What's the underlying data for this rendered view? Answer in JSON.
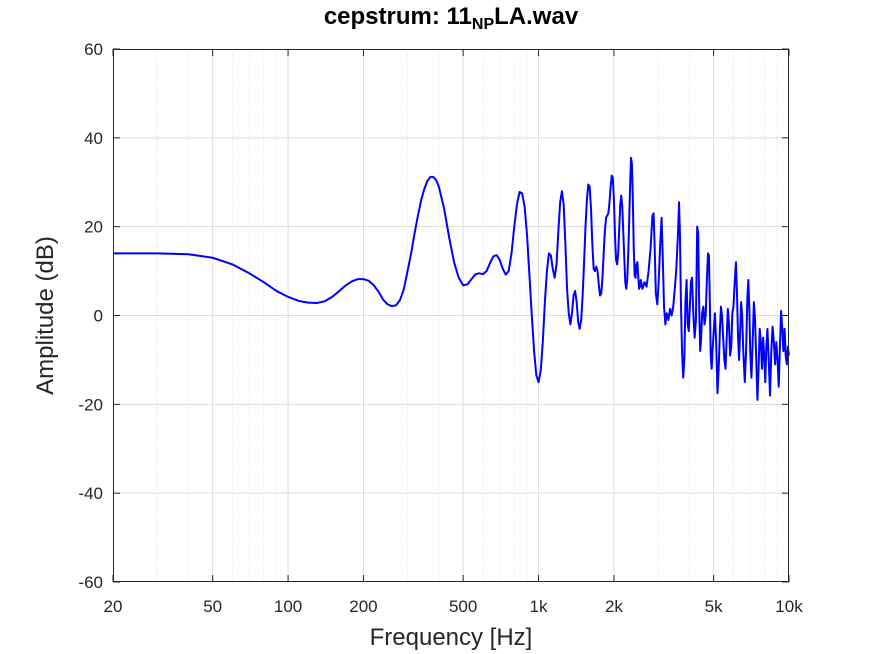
{
  "chart_data": {
    "type": "line",
    "title": {
      "prefix": "cepstrum: 11",
      "subscript": "NP",
      "suffix": "LA.wav"
    },
    "xlabel": "Frequency  [Hz]",
    "ylabel": "Amplitude (dB)",
    "xscale": "log",
    "xlim": [
      20,
      10000
    ],
    "ylim": [
      -60,
      60
    ],
    "grid": true,
    "x_ticks": [
      {
        "value": 20,
        "label": "20"
      },
      {
        "value": 50,
        "label": "50"
      },
      {
        "value": 100,
        "label": "100"
      },
      {
        "value": 200,
        "label": "200"
      },
      {
        "value": 500,
        "label": "500"
      },
      {
        "value": 1000,
        "label": "1k"
      },
      {
        "value": 2000,
        "label": "2k"
      },
      {
        "value": 5000,
        "label": "5k"
      },
      {
        "value": 10000,
        "label": "10k"
      }
    ],
    "y_ticks": [
      {
        "value": -60,
        "label": "-60"
      },
      {
        "value": -40,
        "label": "-40"
      },
      {
        "value": -20,
        "label": "-20"
      },
      {
        "value": 0,
        "label": "0"
      },
      {
        "value": 20,
        "label": "20"
      },
      {
        "value": 40,
        "label": "40"
      },
      {
        "value": 60,
        "label": "60"
      }
    ],
    "series": [
      {
        "color": "#0000ff",
        "points": [
          [
            20,
            14.0
          ],
          [
            30,
            14.0
          ],
          [
            40,
            13.8
          ],
          [
            50,
            13.0
          ],
          [
            60,
            11.5
          ],
          [
            70,
            9.5
          ],
          [
            80,
            7.5
          ],
          [
            90,
            5.5
          ],
          [
            100,
            4.2
          ],
          [
            110,
            3.3
          ],
          [
            120,
            2.9
          ],
          [
            130,
            2.8
          ],
          [
            140,
            3.2
          ],
          [
            150,
            4.2
          ],
          [
            160,
            5.5
          ],
          [
            170,
            6.8
          ],
          [
            180,
            7.7
          ],
          [
            190,
            8.2
          ],
          [
            200,
            8.2
          ],
          [
            210,
            7.8
          ],
          [
            220,
            6.8
          ],
          [
            230,
            5.3
          ],
          [
            240,
            3.5
          ],
          [
            250,
            2.5
          ],
          [
            260,
            2.1
          ],
          [
            270,
            2.3
          ],
          [
            280,
            3.5
          ],
          [
            290,
            6.0
          ],
          [
            300,
            10.0
          ],
          [
            310,
            14.0
          ],
          [
            320,
            18.5
          ],
          [
            330,
            22.5
          ],
          [
            340,
            26.0
          ],
          [
            350,
            28.5
          ],
          [
            360,
            30.3
          ],
          [
            370,
            31.2
          ],
          [
            380,
            31.2
          ],
          [
            390,
            30.5
          ],
          [
            400,
            29.0
          ],
          [
            420,
            24.0
          ],
          [
            440,
            17.5
          ],
          [
            460,
            12.0
          ],
          [
            480,
            8.5
          ],
          [
            500,
            6.8
          ],
          [
            520,
            7.0
          ],
          [
            540,
            8.2
          ],
          [
            560,
            9.3
          ],
          [
            580,
            9.5
          ],
          [
            600,
            9.3
          ],
          [
            620,
            10.0
          ],
          [
            640,
            11.8
          ],
          [
            660,
            13.3
          ],
          [
            680,
            13.6
          ],
          [
            700,
            12.5
          ],
          [
            720,
            10.5
          ],
          [
            740,
            9.2
          ],
          [
            760,
            10.0
          ],
          [
            780,
            14.0
          ],
          [
            800,
            20.0
          ],
          [
            820,
            25.0
          ],
          [
            840,
            27.8
          ],
          [
            860,
            27.5
          ],
          [
            880,
            24.5
          ],
          [
            900,
            18.0
          ],
          [
            920,
            9.0
          ],
          [
            940,
            0.0
          ],
          [
            960,
            -8.0
          ],
          [
            980,
            -13.5
          ],
          [
            1000,
            -15.0
          ],
          [
            1020,
            -12.5
          ],
          [
            1040,
            -6.0
          ],
          [
            1060,
            3.0
          ],
          [
            1080,
            10.0
          ],
          [
            1100,
            14.0
          ],
          [
            1120,
            13.5
          ],
          [
            1140,
            10.5
          ],
          [
            1160,
            8.5
          ],
          [
            1180,
            11.5
          ],
          [
            1200,
            19.0
          ],
          [
            1220,
            25.5
          ],
          [
            1240,
            28.0
          ],
          [
            1260,
            25.0
          ],
          [
            1280,
            16.0
          ],
          [
            1300,
            6.0
          ],
          [
            1320,
            0.5
          ],
          [
            1340,
            -2.0
          ],
          [
            1360,
            0.5
          ],
          [
            1380,
            4.5
          ],
          [
            1400,
            5.5
          ],
          [
            1420,
            3.0
          ],
          [
            1440,
            -1.5
          ],
          [
            1460,
            -3.0
          ],
          [
            1480,
            -1.0
          ],
          [
            1500,
            4.5
          ],
          [
            1520,
            12.0
          ],
          [
            1540,
            20.0
          ],
          [
            1560,
            26.0
          ],
          [
            1580,
            29.5
          ],
          [
            1600,
            29.0
          ],
          [
            1620,
            24.0
          ],
          [
            1640,
            16.0
          ],
          [
            1660,
            10.5
          ],
          [
            1680,
            10.0
          ],
          [
            1700,
            11.0
          ],
          [
            1720,
            10.0
          ],
          [
            1740,
            7.0
          ],
          [
            1760,
            4.5
          ],
          [
            1780,
            5.0
          ],
          [
            1800,
            8.5
          ],
          [
            1820,
            14.0
          ],
          [
            1840,
            19.0
          ],
          [
            1860,
            22.0
          ],
          [
            1880,
            22.5
          ],
          [
            1900,
            23.0
          ],
          [
            1920,
            25.5
          ],
          [
            1940,
            29.0
          ],
          [
            1960,
            31.5
          ],
          [
            1980,
            31.0
          ],
          [
            2000,
            26.0
          ],
          [
            2020,
            18.0
          ],
          [
            2040,
            12.5
          ],
          [
            2060,
            11.5
          ],
          [
            2080,
            14.0
          ],
          [
            2100,
            19.5
          ],
          [
            2120,
            25.0
          ],
          [
            2140,
            27.0
          ],
          [
            2160,
            24.5
          ],
          [
            2180,
            18.5
          ],
          [
            2200,
            13.0
          ],
          [
            2220,
            7.5
          ],
          [
            2240,
            6.0
          ],
          [
            2260,
            8.0
          ],
          [
            2280,
            13.5
          ],
          [
            2300,
            21.0
          ],
          [
            2320,
            29.0
          ],
          [
            2340,
            35.5
          ],
          [
            2360,
            34.0
          ],
          [
            2380,
            26.0
          ],
          [
            2400,
            15.0
          ],
          [
            2420,
            9.0
          ],
          [
            2440,
            8.5
          ],
          [
            2460,
            11.5
          ],
          [
            2480,
            12.0
          ],
          [
            2500,
            9.0
          ],
          [
            2520,
            6.0
          ],
          [
            2540,
            6.5
          ],
          [
            2560,
            8.0
          ],
          [
            2580,
            7.0
          ],
          [
            2600,
            6.0
          ],
          [
            2650,
            7.5
          ],
          [
            2700,
            6.5
          ],
          [
            2750,
            10.0
          ],
          [
            2800,
            15.0
          ],
          [
            2850,
            22.5
          ],
          [
            2880,
            23.0
          ],
          [
            2910,
            15.0
          ],
          [
            2940,
            5.0
          ],
          [
            2980,
            2.5
          ],
          [
            3020,
            8.0
          ],
          [
            3060,
            16.0
          ],
          [
            3100,
            22.0
          ],
          [
            3130,
            14.0
          ],
          [
            3170,
            2.0
          ],
          [
            3210,
            -2.0
          ],
          [
            3250,
            0.5
          ],
          [
            3300,
            -1.0
          ],
          [
            3350,
            1.5
          ],
          [
            3400,
            0.0
          ],
          [
            3450,
            2.0
          ],
          [
            3500,
            6.0
          ],
          [
            3550,
            10.5
          ],
          [
            3600,
            18.0
          ],
          [
            3640,
            25.5
          ],
          [
            3670,
            18.0
          ],
          [
            3700,
            4.0
          ],
          [
            3740,
            -8.0
          ],
          [
            3780,
            -14.0
          ],
          [
            3820,
            -10.0
          ],
          [
            3860,
            3.0
          ],
          [
            3900,
            8.0
          ],
          [
            3940,
            -2.0
          ],
          [
            3980,
            -3.5
          ],
          [
            4020,
            2.0
          ],
          [
            4060,
            7.5
          ],
          [
            4100,
            8.5
          ],
          [
            4150,
            0.5
          ],
          [
            4200,
            -5.0
          ],
          [
            4250,
            -1.0
          ],
          [
            4300,
            20.0
          ],
          [
            4340,
            18.5
          ],
          [
            4380,
            2.0
          ],
          [
            4420,
            -8.0
          ],
          [
            4460,
            -5.0
          ],
          [
            4500,
            0.5
          ],
          [
            4550,
            2.0
          ],
          [
            4600,
            -2.0
          ],
          [
            4650,
            0.0
          ],
          [
            4700,
            8.0
          ],
          [
            4750,
            14.0
          ],
          [
            4790,
            13.5
          ],
          [
            4830,
            3.0
          ],
          [
            4870,
            -9.0
          ],
          [
            4910,
            -12.0
          ],
          [
            4950,
            -8.0
          ],
          [
            5000,
            -4.0
          ],
          [
            5060,
            0.5
          ],
          [
            5120,
            -6.0
          ],
          [
            5180,
            -17.5
          ],
          [
            5240,
            -12.0
          ],
          [
            5300,
            -3.0
          ],
          [
            5350,
            2.0
          ],
          [
            5400,
            0.0
          ],
          [
            5460,
            -5.0
          ],
          [
            5520,
            -10.0
          ],
          [
            5580,
            -12.0
          ],
          [
            5640,
            -5.0
          ],
          [
            5700,
            1.5
          ],
          [
            5760,
            -2.0
          ],
          [
            5820,
            -9.0
          ],
          [
            5880,
            -7.0
          ],
          [
            5940,
            0.5
          ],
          [
            6000,
            2.0
          ],
          [
            6080,
            8.0
          ],
          [
            6140,
            12.0
          ],
          [
            6200,
            5.0
          ],
          [
            6260,
            -5.0
          ],
          [
            6320,
            -10.0
          ],
          [
            6380,
            -4.0
          ],
          [
            6440,
            3.0
          ],
          [
            6500,
            0.0
          ],
          [
            6580,
            -9.0
          ],
          [
            6660,
            -15.0
          ],
          [
            6740,
            -8.0
          ],
          [
            6820,
            4.0
          ],
          [
            6880,
            8.0
          ],
          [
            6940,
            2.0
          ],
          [
            7000,
            -8.0
          ],
          [
            7080,
            -14.0
          ],
          [
            7160,
            -6.0
          ],
          [
            7240,
            3.0
          ],
          [
            7320,
            -1.0
          ],
          [
            7400,
            -10.0
          ],
          [
            7480,
            -19.0
          ],
          [
            7560,
            -12.0
          ],
          [
            7640,
            -3.0
          ],
          [
            7720,
            -6.0
          ],
          [
            7800,
            -12.0
          ],
          [
            7880,
            -5.0
          ],
          [
            7960,
            -9.0
          ],
          [
            8040,
            -15.0
          ],
          [
            8120,
            -7.0
          ],
          [
            8200,
            -3.0
          ],
          [
            8300,
            -10.0
          ],
          [
            8400,
            -18.0
          ],
          [
            8500,
            -8.0
          ],
          [
            8600,
            -2.5
          ],
          [
            8700,
            -6.0
          ],
          [
            8800,
            -11.0
          ],
          [
            8900,
            -6.0
          ],
          [
            9000,
            -10.0
          ],
          [
            9100,
            -16.0
          ],
          [
            9200,
            -7.0
          ],
          [
            9300,
            1.0
          ],
          [
            9400,
            -3.0
          ],
          [
            9500,
            -8.0
          ],
          [
            9600,
            -3.0
          ],
          [
            9700,
            -9.0
          ],
          [
            9800,
            -11.0
          ],
          [
            9900,
            -7.0
          ],
          [
            10000,
            -9.0
          ]
        ]
      }
    ]
  }
}
